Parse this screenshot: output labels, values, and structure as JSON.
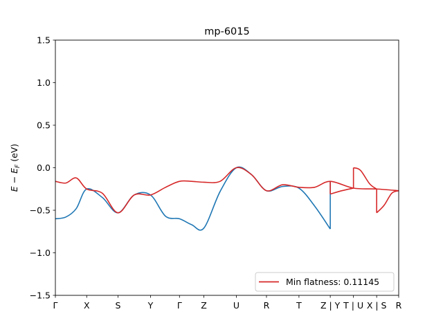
{
  "chart_data": {
    "type": "line",
    "title": "mp-6015",
    "xlabel": "",
    "ylabel": "E − E_F (eV)",
    "ylabel_parts": {
      "e": "E",
      "minus": " − ",
      "ef": "E",
      "f": "F",
      "units": " (eV)"
    },
    "ylim": [
      -1.5,
      1.5
    ],
    "yticks": [
      -1.5,
      -1.0,
      -0.5,
      0.0,
      0.5,
      1.0,
      1.5
    ],
    "ytick_labels": [
      "−1.5",
      "−1.0",
      "−0.5",
      "0.0",
      "0.5",
      "1.0",
      "1.5"
    ],
    "xlim": [
      0,
      5.92
    ],
    "kpoints": [
      {
        "label": "Γ",
        "x": 0.0
      },
      {
        "label": "X",
        "x": 0.54
      },
      {
        "label": "S",
        "x": 1.08
      },
      {
        "label": "Y",
        "x": 1.64
      },
      {
        "label": "Γ",
        "x": 2.14
      },
      {
        "label": "Z",
        "x": 2.56
      },
      {
        "label": "U",
        "x": 3.12
      },
      {
        "label": "R",
        "x": 3.64
      },
      {
        "label": "T",
        "x": 4.2
      },
      {
        "label": "Z | Y",
        "x": 4.74
      },
      {
        "label": "T | U",
        "x": 5.14
      },
      {
        "label": "X | S",
        "x": 5.54
      },
      {
        "label": "R",
        "x": 5.92
      }
    ],
    "series": [
      {
        "color": "#1f77b4",
        "x": [
          0.0,
          0.18,
          0.36,
          0.54,
          0.81,
          1.08,
          1.36,
          1.64,
          1.9,
          2.14,
          2.35,
          2.56,
          2.84,
          3.12,
          3.38,
          3.64,
          3.92,
          4.2,
          4.47,
          4.74
        ],
        "y": [
          -0.6,
          -0.58,
          -0.48,
          -0.25,
          -0.35,
          -0.53,
          -0.32,
          -0.32,
          -0.57,
          -0.6,
          -0.67,
          -0.71,
          -0.28,
          0.0,
          -0.08,
          -0.27,
          -0.22,
          -0.24,
          -0.45,
          -0.72
        ]
      },
      {
        "color": "#d62728",
        "x": [
          0.0,
          0.18,
          0.36,
          0.54,
          0.81,
          1.08,
          1.36,
          1.64,
          1.9,
          2.14,
          2.35,
          2.56,
          2.84,
          3.12,
          3.38,
          3.64,
          3.92,
          4.2,
          4.47,
          4.74,
          5.14,
          5.54,
          5.92
        ],
        "y": [
          -0.16,
          -0.18,
          -0.12,
          -0.25,
          -0.3,
          -0.53,
          -0.32,
          -0.32,
          -0.23,
          -0.16,
          -0.16,
          -0.17,
          -0.16,
          0.0,
          -0.08,
          -0.27,
          -0.2,
          -0.23,
          -0.23,
          -0.16,
          -0.24,
          -0.25,
          -0.27
        ]
      },
      {
        "color": "#d62728",
        "x": [
          4.74,
          4.94,
          5.14
        ],
        "y": [
          -0.31,
          -0.27,
          -0.24
        ]
      },
      {
        "color": "#d62728",
        "x": [
          5.14,
          5.26,
          5.42,
          5.54
        ],
        "y": [
          0.0,
          -0.03,
          -0.19,
          -0.25
        ]
      },
      {
        "color": "#d62728",
        "x": [
          5.54,
          5.67,
          5.8,
          5.92
        ],
        "y": [
          -0.53,
          -0.44,
          -0.3,
          -0.27
        ]
      }
    ],
    "legend": {
      "label": "Min flatness: 0.11145",
      "color": "#d62728",
      "position": "lower right"
    },
    "grid": false
  }
}
